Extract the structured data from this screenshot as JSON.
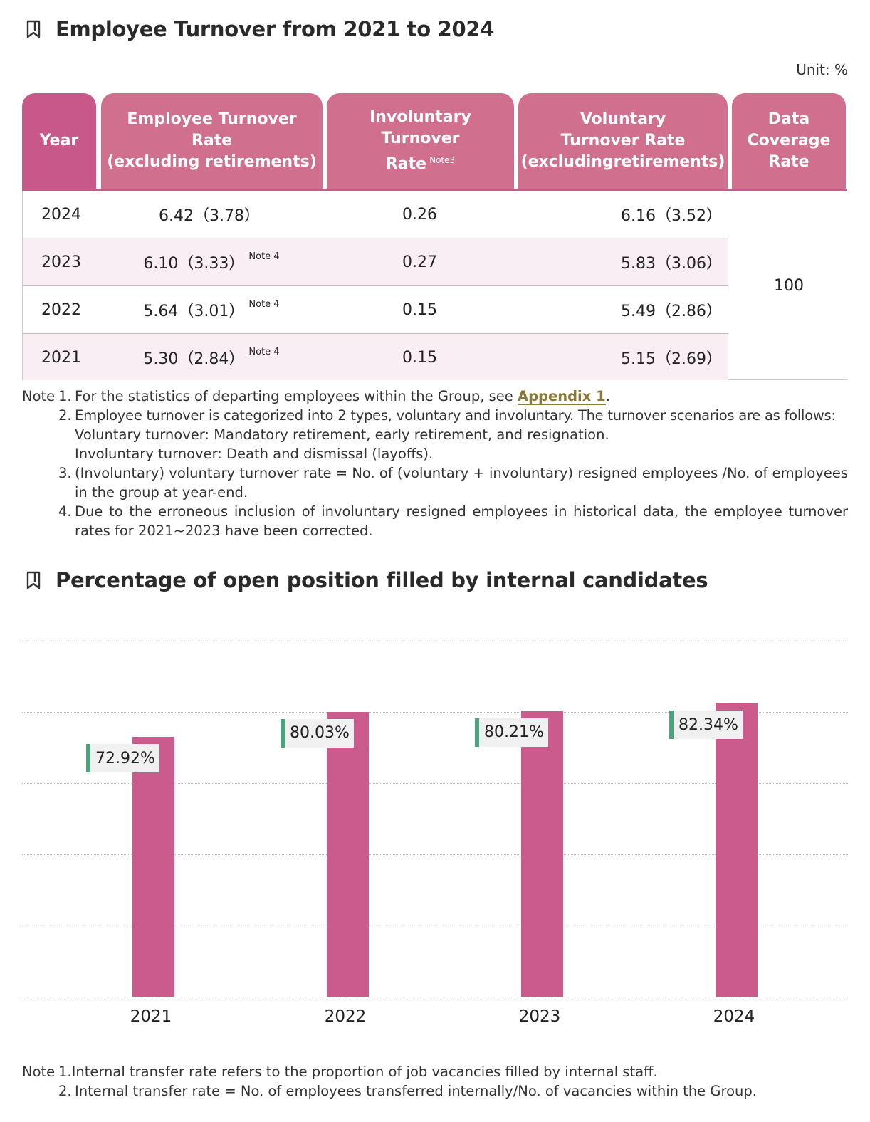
{
  "section1": {
    "title": "Employee Turnover from 2021 to 2024",
    "unit": "Unit: %"
  },
  "table": {
    "headers": {
      "year": "Year",
      "rate_line1": "Employee Turnover Rate",
      "rate_line2": "(excluding retirements)",
      "inv_line1": "Involuntary Turnover",
      "inv_line2": "Rate",
      "inv_note": "Note3",
      "vol_line1": "Voluntary",
      "vol_line2": "Turnover Rate",
      "vol_line3": "(excludingretirements)",
      "cov_line1": "Data",
      "cov_line2": "Coverage",
      "cov_line3": "Rate"
    },
    "rows": [
      {
        "year": "2024",
        "rate": "6.42（3.78）",
        "note": "",
        "inv": "0.26",
        "vol": "6.16（3.52）"
      },
      {
        "year": "2023",
        "rate": "6.10（3.33）",
        "note": "Note 4",
        "inv": "0.27",
        "vol": "5.83（3.06）"
      },
      {
        "year": "2022",
        "rate": "5.64（3.01）",
        "note": "Note 4",
        "inv": "0.15",
        "vol": "5.49（2.86）"
      },
      {
        "year": "2021",
        "rate": "5.30（2.84）",
        "note": "Note 4",
        "inv": "0.15",
        "vol": "5.15（2.69）"
      }
    ],
    "coverage": "100"
  },
  "notes1": {
    "label": "Note",
    "n1_num": "1.",
    "n1_pre": "For the statistics of departing employees within the Group, see ",
    "n1_link": "Appendix 1",
    "n1_post": ".",
    "n2_num": "2.",
    "n2_text": "Employee turnover is categorized into 2 types, voluntary and involuntary. The turnover scenarios are as follows:",
    "n2_sub1": "Voluntary turnover: Mandatory retirement, early retirement, and resignation.",
    "n2_sub2": "Involuntary turnover: Death and dismissal (layoffs).",
    "n3_num": "3.",
    "n3_text": "(Involuntary) voluntary turnover rate = No. of (voluntary + involuntary) resigned employees /No. of employees in the group at year-end.",
    "n4_num": "4.",
    "n4_text": "Due to the erroneous inclusion of involuntary resigned employees in historical data, the employee turnover rates for 2021~2023 have been corrected."
  },
  "section2": {
    "title": "Percentage of open position filled by internal candidates"
  },
  "chart_data": {
    "type": "bar",
    "title": "Percentage of open position filled by internal candidates",
    "categories": [
      "2021",
      "2022",
      "2023",
      "2024"
    ],
    "values": [
      72.92,
      80.03,
      80.21,
      82.34
    ],
    "data_labels": [
      "72.92%",
      "80.03%",
      "80.21%",
      "82.34%"
    ],
    "grid": true,
    "bar_color": "#cb5b8c",
    "label_accent_color": "#4aa67a"
  },
  "notes2": {
    "label": "Note",
    "n1_num": "1.",
    "n1_text": "Internal transfer rate refers to the proportion of job vacancies filled by internal staff.",
    "n2_num": "2.",
    "n2_text": "Internal transfer rate = No. of employees transferred internally/No. of vacancies within the Group."
  }
}
